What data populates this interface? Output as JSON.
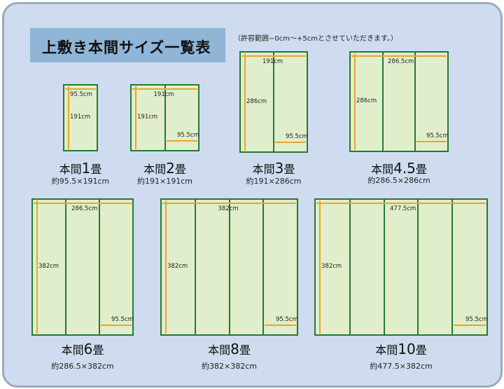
{
  "title": "上敷き本間サイズ一覧表",
  "note": "（許容範囲−0cm〜+5cmとさせていただきます。）",
  "colors": {
    "background": "#cfdcef",
    "title_box": "#8fb5d7",
    "mat_fill": "#e1eecb",
    "mat_border": "#227a35",
    "dimension_arrow": "#e9a62a"
  },
  "mats": [
    {
      "prefix": "本間",
      "number": "1",
      "suffix": "畳",
      "size": "約95.5×191cm",
      "width_label": "95.5cm",
      "length_label": "191cm",
      "panel_label": "",
      "panels": 1
    },
    {
      "prefix": "本間",
      "number": "2",
      "suffix": "畳",
      "size": "約191×191cm",
      "width_label": "191cm",
      "length_label": "191cm",
      "panel_label": "95.5cm",
      "panels": 2
    },
    {
      "prefix": "本間",
      "number": "3",
      "suffix": "畳",
      "size": "約191×286cm",
      "width_label": "191cm",
      "length_label": "286cm",
      "panel_label": "95.5cm",
      "panels": 2
    },
    {
      "prefix": "本間",
      "number": "4.5",
      "suffix": "畳",
      "size": "約286.5×286cm",
      "width_label": "286.5cm",
      "length_label": "286cm",
      "panel_label": "95.5cm",
      "panels": 3
    },
    {
      "prefix": "本間",
      "number": "6",
      "suffix": "畳",
      "size": "約286.5×382cm",
      "width_label": "286.5cm",
      "length_label": "382cm",
      "panel_label": "95.5cm",
      "panels": 3
    },
    {
      "prefix": "本間",
      "number": "8",
      "suffix": "畳",
      "size": "約382×382cm",
      "width_label": "382cm",
      "length_label": "382cm",
      "panel_label": "95.5cm",
      "panels": 4
    },
    {
      "prefix": "本間",
      "number": "10",
      "suffix": "畳",
      "size": "約477.5×382cm",
      "width_label": "477.5cm",
      "length_label": "382cm",
      "panel_label": "95.5cm",
      "panels": 5
    }
  ]
}
